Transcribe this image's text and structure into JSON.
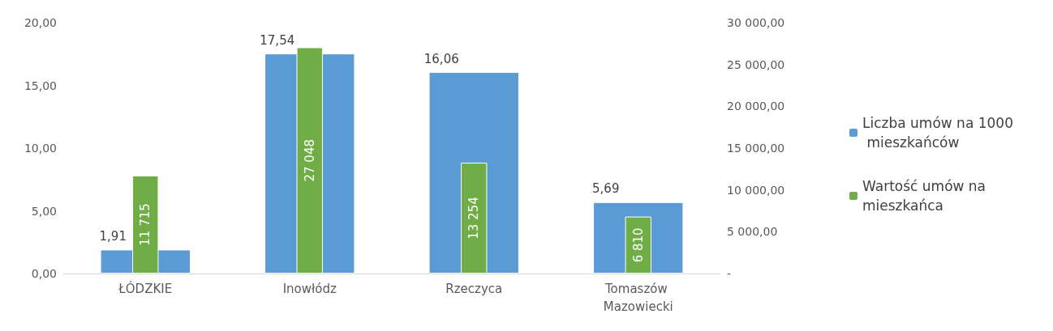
{
  "chart_data": {
    "type": "bar",
    "categories": [
      "ŁÓDZKIE",
      "Inowłódz",
      "Rzeczyca",
      "Tomaszów Mazowiecki"
    ],
    "series": [
      {
        "name": "Liczba umów na 1000 mieszkańców",
        "color": "#5b9bd5",
        "values": [
          1.91,
          17.54,
          16.06,
          5.69
        ],
        "value_labels": [
          "1,91",
          "17,54",
          "16,06",
          "5,69"
        ]
      },
      {
        "name": "Wartość umów na mieszkańca",
        "color": "#70ad47",
        "axis": "y2",
        "values": [
          11715,
          27048,
          13254,
          6810
        ],
        "value_labels": [
          "11 715",
          "27 048",
          "13 254",
          "6 810"
        ]
      }
    ],
    "ylim": [
      0,
      20
    ],
    "yticks": [
      {
        "value": 0,
        "label": "0,00"
      },
      {
        "value": 5,
        "label": "5,00"
      },
      {
        "value": 10,
        "label": "10,00"
      },
      {
        "value": 15,
        "label": "15,00"
      },
      {
        "value": 20,
        "label": "20,00"
      }
    ],
    "y2lim": [
      0,
      30000
    ],
    "y2ticks": [
      {
        "value": 0,
        "label": "-"
      },
      {
        "value": 5000,
        "label": "5 000,00"
      },
      {
        "value": 10000,
        "label": "10 000,00"
      },
      {
        "value": 15000,
        "label": "15 000,00"
      },
      {
        "value": 20000,
        "label": "20 000,00"
      },
      {
        "value": 25000,
        "label": "25 000,00"
      },
      {
        "value": 30000,
        "label": "30 000,00"
      }
    ],
    "grid": false,
    "legend": "right"
  }
}
